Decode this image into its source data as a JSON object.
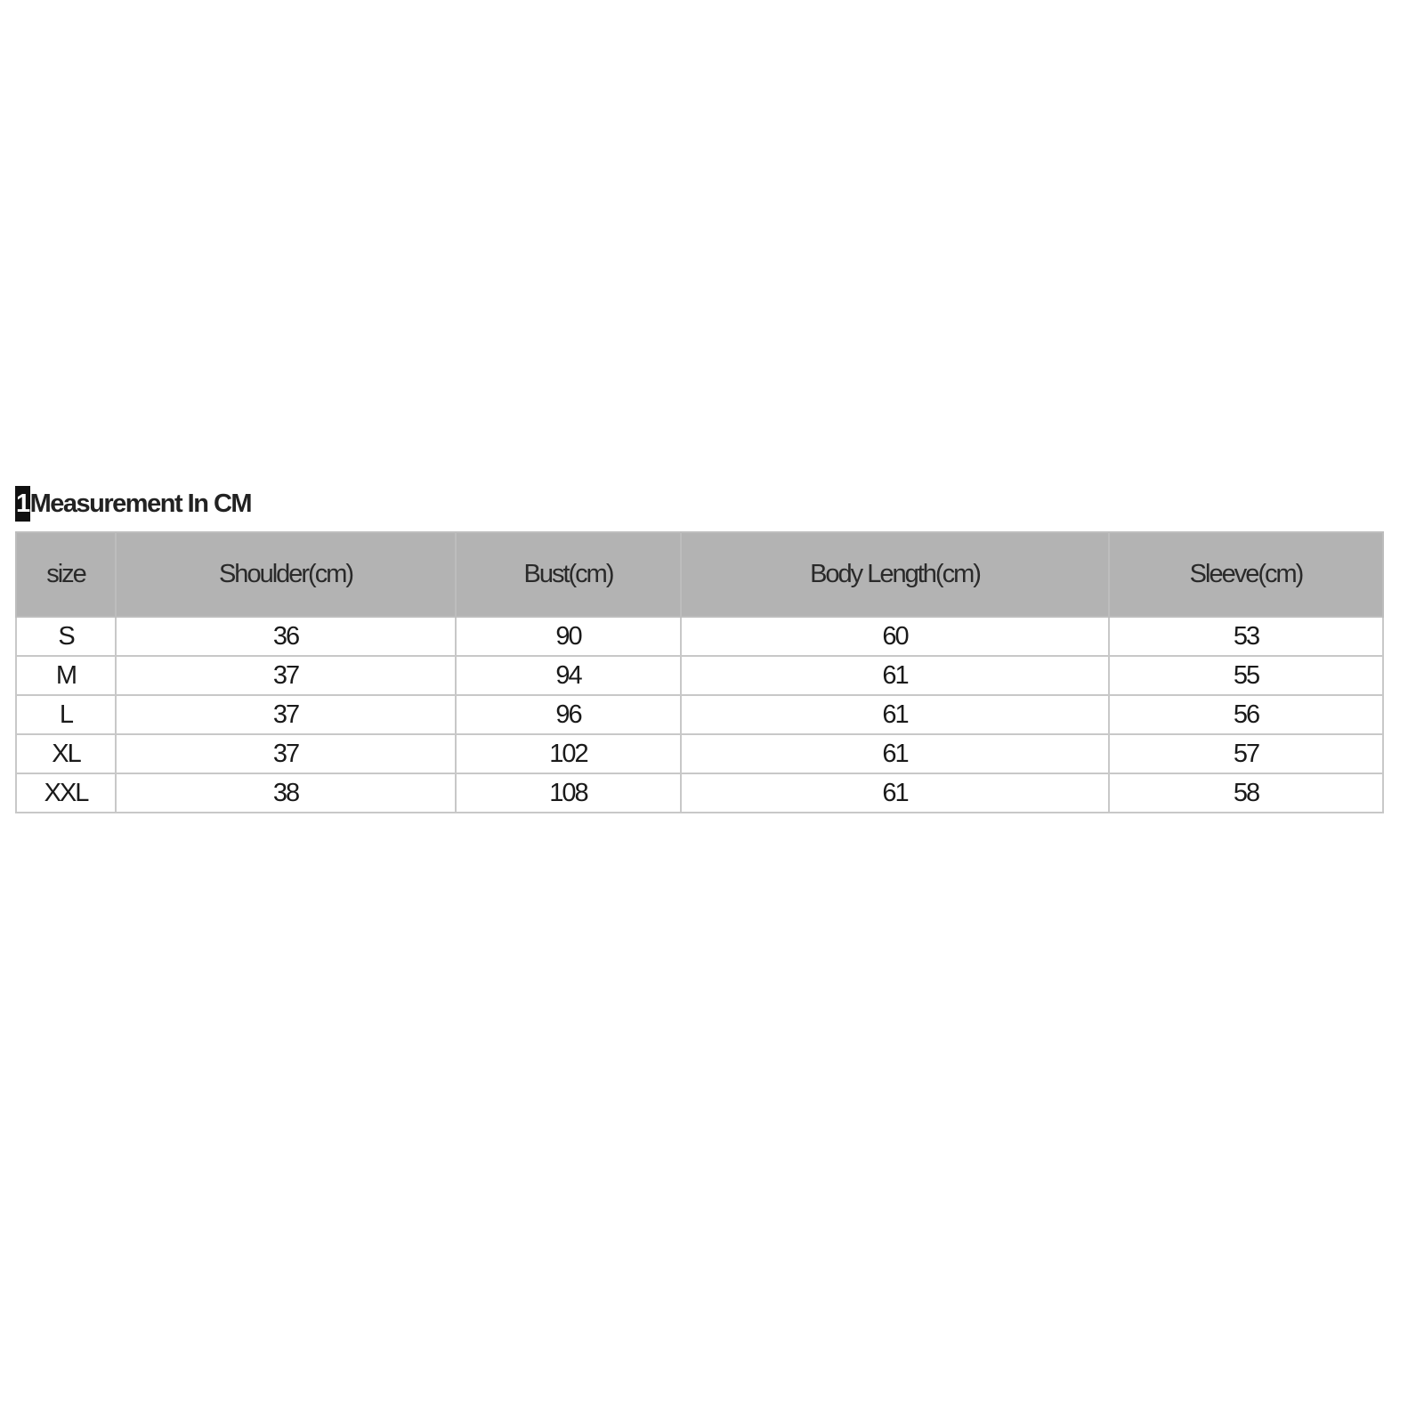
{
  "title": {
    "number": "1",
    "text": "Measurement In CM"
  },
  "colors": {
    "header_bg": "#b3b3b3",
    "border": "#c8c8c8",
    "number_highlight": "#111111"
  },
  "table": {
    "headers": [
      "size",
      "Shoulder(cm)",
      "Bust(cm)",
      "Body Length(cm)",
      "Sleeve(cm)"
    ],
    "rows": [
      [
        "S",
        "36",
        "90",
        "60",
        "53"
      ],
      [
        "M",
        "37",
        "94",
        "61",
        "55"
      ],
      [
        "L",
        "37",
        "96",
        "61",
        "56"
      ],
      [
        "XL",
        "37",
        "102",
        "61",
        "57"
      ],
      [
        "XXL",
        "38",
        "108",
        "61",
        "58"
      ]
    ]
  }
}
